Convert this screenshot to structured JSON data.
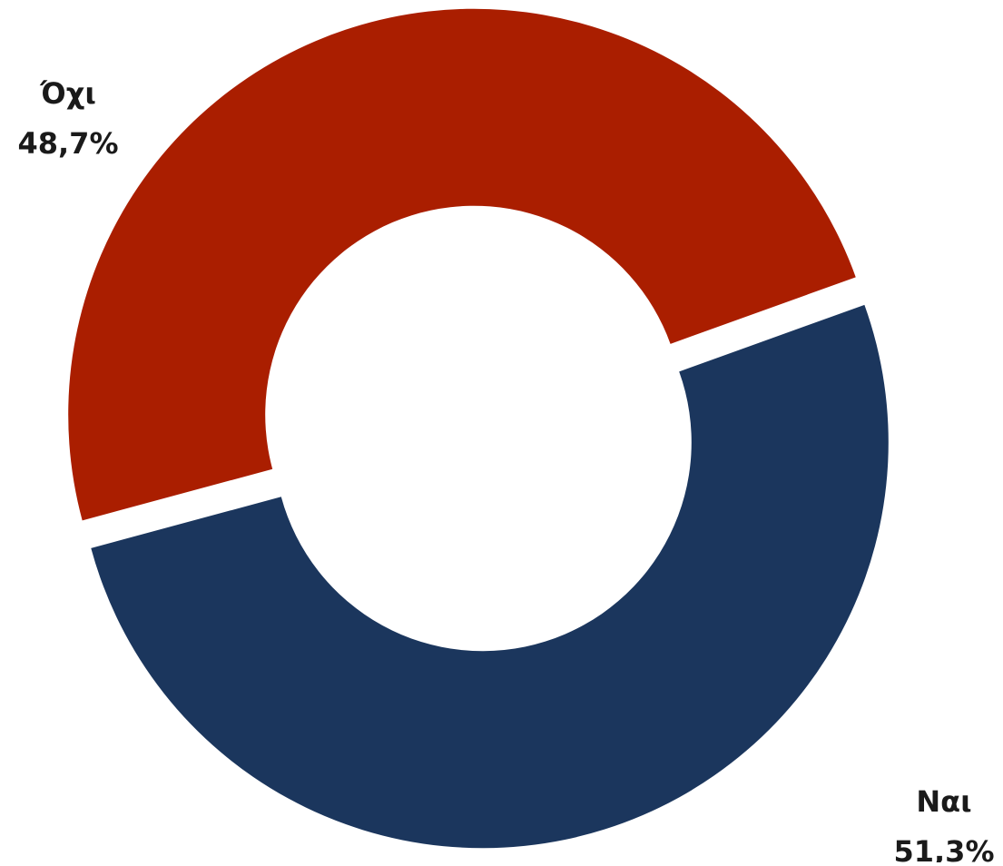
{
  "chart_data": {
    "type": "donut",
    "categories": [
      "Ναι",
      "Όχι"
    ],
    "values": [
      51.3,
      48.7
    ],
    "value_labels": [
      "51,3%",
      "48,7%"
    ],
    "colors": [
      "#1b365d",
      "#aa1e00"
    ]
  }
}
